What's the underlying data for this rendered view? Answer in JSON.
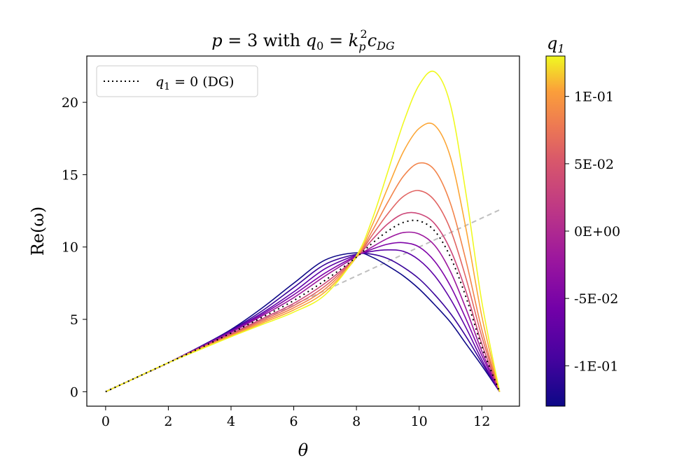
{
  "chart_data": {
    "type": "line",
    "title": "p = 3 with q₀ = kₚ²c_DG",
    "title_parts": {
      "left": "p = 3 with q",
      "sub0": "0",
      "eq": " = k",
      "supsub_sup": "2",
      "supsub_sub": "p",
      "c": "c",
      "c_sub": "DG"
    },
    "xlabel": "θ",
    "ylabel": "Re(ω)",
    "xlim": [
      -0.6,
      13.2
    ],
    "ylim": [
      -1.0,
      23.2
    ],
    "x_ticks": [
      0,
      2,
      4,
      6,
      8,
      10,
      12
    ],
    "y_ticks": [
      0,
      5,
      10,
      15,
      20
    ],
    "legend": {
      "placement": "top-left",
      "entries": [
        {
          "label_prefix": "q",
          "label_sub": "1",
          "label_suffix": " = 0 (DG)",
          "style": "dotted",
          "color": "#000000"
        }
      ]
    },
    "colorbar": {
      "label": "q",
      "label_sub": "1",
      "range": [
        -0.13,
        0.13
      ],
      "ticks": [
        {
          "value": 0.1,
          "label": "1E-01"
        },
        {
          "value": 0.05,
          "label": "5E-02"
        },
        {
          "value": 0.0,
          "label": "0E+00"
        },
        {
          "value": -0.05,
          "label": "-5E-02"
        },
        {
          "value": -0.1,
          "label": "-1E-01"
        }
      ],
      "colormap": "plasma"
    },
    "reference_line": {
      "style": "dashed",
      "color": "#bfbfbf",
      "x": [
        0,
        12.566
      ],
      "y": [
        0,
        12.566
      ]
    },
    "series": [
      {
        "q1": -0.13,
        "color": "#0d0887",
        "x": [
          0,
          1,
          2,
          3,
          4,
          5,
          6,
          7,
          8,
          8.5,
          9,
          9.5,
          10,
          10.5,
          11,
          11.5,
          12,
          12.566
        ],
        "y": [
          0,
          1,
          2,
          3.1,
          4.3,
          5.8,
          7.5,
          9.1,
          9.6,
          9.3,
          8.7,
          8.0,
          7.1,
          6.0,
          4.8,
          3.3,
          1.8,
          0
        ]
      },
      {
        "q1": -0.108,
        "color": "#3a049a",
        "x": [
          0,
          1,
          2,
          3,
          4,
          5,
          6,
          7,
          8,
          8.5,
          9,
          9.5,
          10,
          10.5,
          11,
          11.5,
          12,
          12.566
        ],
        "y": [
          0,
          1,
          2,
          3.1,
          4.25,
          5.6,
          7.2,
          8.8,
          9.5,
          9.5,
          9.2,
          8.6,
          7.8,
          6.7,
          5.4,
          3.8,
          2.0,
          0
        ]
      },
      {
        "q1": -0.087,
        "color": "#5c01a6",
        "x": [
          0,
          1,
          2,
          3,
          4,
          5,
          6,
          7,
          8,
          8.5,
          9,
          9.5,
          10,
          10.5,
          11,
          11.5,
          12,
          12.566
        ],
        "y": [
          0,
          1,
          2,
          3.05,
          4.2,
          5.45,
          6.9,
          8.5,
          9.45,
          9.7,
          9.8,
          9.7,
          9.1,
          8.0,
          6.4,
          4.4,
          2.2,
          0
        ]
      },
      {
        "q1": -0.065,
        "color": "#7e03a8",
        "x": [
          0,
          1,
          2,
          3,
          4,
          5,
          6,
          7,
          8,
          8.5,
          9,
          9.5,
          10,
          10.5,
          11,
          11.5,
          12,
          12.566
        ],
        "y": [
          0,
          1,
          2,
          3.05,
          4.15,
          5.35,
          6.7,
          8.2,
          9.4,
          9.85,
          10.2,
          10.3,
          10.0,
          9.0,
          7.3,
          5.0,
          2.5,
          0
        ]
      },
      {
        "q1": -0.043,
        "color": "#9c179e",
        "x": [
          0,
          1,
          2,
          3,
          4,
          5,
          6,
          7,
          8,
          8.5,
          9,
          9.5,
          10,
          10.5,
          11,
          11.5,
          12,
          12.566
        ],
        "y": [
          0,
          1,
          2,
          3.05,
          4.1,
          5.25,
          6.5,
          8.0,
          9.35,
          10.0,
          10.6,
          11.0,
          10.9,
          10.1,
          8.3,
          5.7,
          2.8,
          0
        ]
      },
      {
        "q1": 0.0,
        "color": "#000000",
        "dotted": true,
        "x": [
          0,
          1,
          2,
          3,
          4,
          5,
          6,
          7,
          8,
          8.5,
          9,
          9.5,
          10,
          10.5,
          11,
          11.5,
          12,
          12.566
        ],
        "y": [
          0,
          1,
          2,
          3.0,
          4.05,
          5.15,
          6.3,
          7.7,
          9.3,
          10.25,
          11.1,
          11.7,
          11.8,
          11.1,
          9.3,
          6.5,
          3.1,
          0
        ]
      },
      {
        "q1": 0.022,
        "color": "#cc4778",
        "x": [
          0,
          1,
          2,
          3,
          4,
          5,
          6,
          7,
          8,
          8.5,
          9,
          9.5,
          10,
          10.5,
          11,
          11.5,
          12,
          12.566
        ],
        "y": [
          0,
          1,
          2,
          3.0,
          4.0,
          5.05,
          6.1,
          7.5,
          9.3,
          10.5,
          11.6,
          12.3,
          12.3,
          11.6,
          9.8,
          6.9,
          3.3,
          0
        ]
      },
      {
        "q1": 0.043,
        "color": "#e16462",
        "x": [
          0,
          1,
          2,
          3,
          4,
          5,
          6,
          7,
          8,
          8.5,
          9,
          9.5,
          10,
          10.5,
          11,
          11.5,
          12,
          12.566
        ],
        "y": [
          0,
          1,
          2,
          3.0,
          3.95,
          4.95,
          5.95,
          7.3,
          9.3,
          10.8,
          12.3,
          13.5,
          13.9,
          13.2,
          11.2,
          7.8,
          3.8,
          0
        ]
      },
      {
        "q1": 0.065,
        "color": "#f2844b",
        "x": [
          0,
          1,
          2,
          3,
          4,
          5,
          6,
          7,
          8,
          8.5,
          9,
          9.5,
          10,
          10.5,
          11,
          11.5,
          12,
          12.566
        ],
        "y": [
          0,
          1,
          2,
          2.95,
          3.9,
          4.85,
          5.8,
          7.1,
          9.3,
          11.1,
          13.1,
          14.9,
          15.8,
          15.3,
          13.0,
          9.0,
          4.3,
          0
        ]
      },
      {
        "q1": 0.098,
        "color": "#fca636",
        "x": [
          0,
          1,
          2,
          3,
          4,
          5,
          6,
          7,
          8,
          8.5,
          9,
          9.5,
          10,
          10.5,
          11,
          11.5,
          12,
          12.566
        ],
        "y": [
          0,
          1,
          2,
          2.95,
          3.85,
          4.75,
          5.65,
          6.9,
          9.3,
          11.5,
          14.1,
          16.6,
          18.2,
          18.4,
          16.2,
          11.2,
          5.2,
          0
        ]
      },
      {
        "q1": 0.13,
        "color": "#f0f921",
        "x": [
          0,
          1,
          2,
          3,
          4,
          5,
          6,
          7,
          8,
          8.5,
          9,
          9.5,
          10,
          10.5,
          11,
          11.5,
          12,
          12.566
        ],
        "y": [
          0,
          1,
          2,
          2.9,
          3.8,
          4.65,
          5.5,
          6.7,
          9.4,
          11.9,
          15.2,
          18.6,
          21.2,
          22.1,
          19.8,
          13.6,
          6.2,
          0
        ]
      }
    ]
  }
}
